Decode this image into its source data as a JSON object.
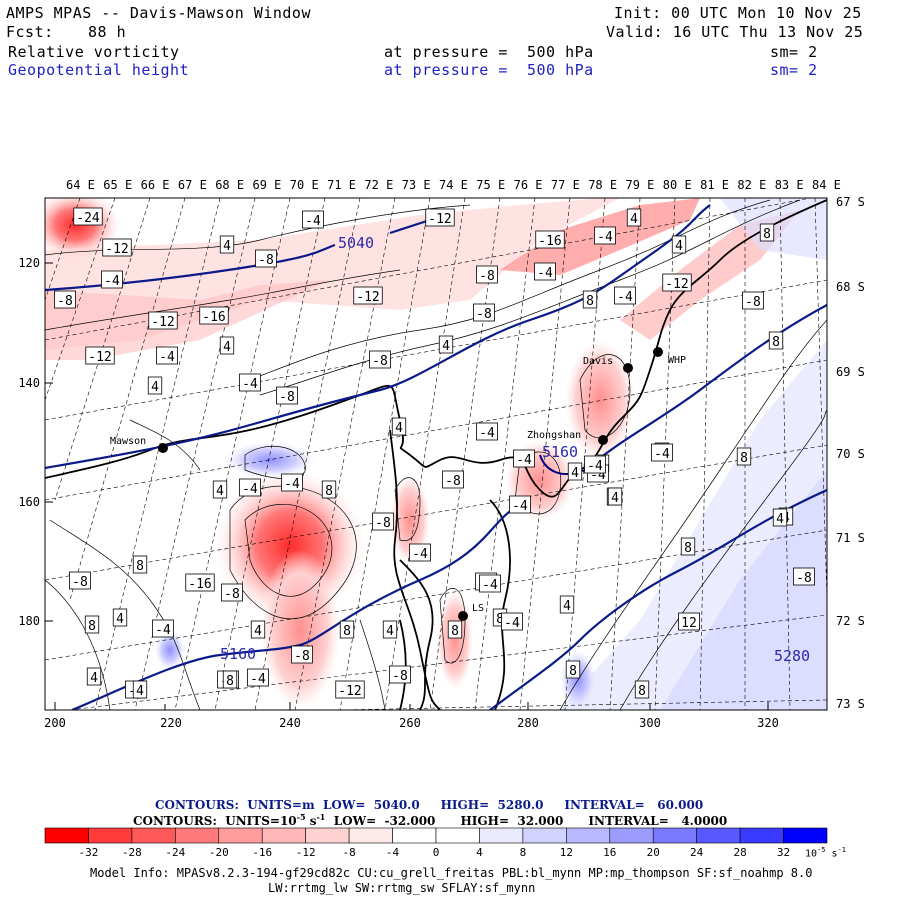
{
  "header": {
    "title": "AMPS MPAS -- Davis-Mawson Window",
    "init": "Init: 00 UTC Mon 10 Nov 25",
    "fcst_label": "Fcst:",
    "fcst_value": "88 h",
    "valid": "Valid: 16 UTC Thu 13 Nov 25",
    "field1": "Relative vorticity",
    "field1_level": "at pressure =  500 hPa",
    "field1_sm": "sm= 2",
    "field2": "Geopotential height",
    "field2_level": "at pressure =  500 hPa",
    "field2_sm": "sm= 2"
  },
  "map": {
    "top_lon_labels": [
      "64 E",
      "65 E",
      "66 E",
      "67 E",
      "68 E",
      "69 E",
      "70 E",
      "71 E",
      "72 E",
      "73 E",
      "74 E",
      "75 E",
      "76 E",
      "77 E",
      "78 E",
      "79 E",
      "80 E",
      "81 E",
      "82 E",
      "83 E",
      "84 E"
    ],
    "right_lat_labels": [
      "67 S",
      "68 S",
      "69 S",
      "70 S",
      "71 S",
      "72 S",
      "73 S"
    ],
    "left_y_labels": [
      "120",
      "140",
      "160",
      "180"
    ],
    "bottom_x_labels": [
      "200",
      "220",
      "240",
      "260",
      "280",
      "300",
      "320"
    ],
    "stations": [
      {
        "name": "Mawson",
        "icon": "station-dot-icon"
      },
      {
        "name": "Davis",
        "icon": "station-dot-icon"
      },
      {
        "name": "WHP",
        "icon": "station-dot-icon"
      },
      {
        "name": "Zhongshan",
        "icon": "station-dot-icon"
      },
      {
        "name": "LS",
        "icon": "station-dot-icon"
      }
    ],
    "height_contours": [
      "5040",
      "5160",
      "5280"
    ],
    "vorticity_labels": [
      "-24",
      "-12",
      "-4",
      "4",
      "-8",
      "-12",
      "-16",
      "-12",
      "-4",
      "4",
      "-4",
      "-8",
      "4",
      "-4",
      "-8",
      "-12",
      "-8",
      "-8",
      "4",
      "-12",
      "-8",
      "-16",
      "-4",
      "4",
      "-4",
      "8",
      "-12",
      "4",
      "-4",
      "8",
      "-8",
      "8",
      "4",
      "-4",
      "-4",
      "-8",
      "-8",
      "8",
      "4",
      "4",
      "4",
      "-4",
      "-4",
      "8",
      "-4",
      "-4",
      "4",
      "-4",
      "8",
      "-8",
      "-16",
      "-8",
      "4",
      "8",
      "4",
      "8",
      "8",
      "-4",
      "8",
      "4",
      "-4",
      "-4",
      "-8",
      "-12",
      "-8",
      "-4",
      "4",
      "8",
      "8",
      "4",
      "-8",
      "12",
      "8",
      "4",
      "-4",
      "-4",
      "-4",
      "-4",
      "-4",
      "4",
      "8",
      "4",
      "8",
      "4",
      "12",
      "-4",
      "-8",
      "8",
      "8",
      "8",
      "8",
      "-4",
      "4",
      "-4",
      "-12",
      "-4",
      "-4",
      "-8",
      "4",
      "4",
      "8"
    ]
  },
  "contours_info": {
    "line1": "CONTOURS:  UNITS=m  LOW=  5040.0     HIGH=  5280.0     INTERVAL=   60.000",
    "line2": "CONTOURS:  UNITS=10",
    "line2_exp": "-5",
    "line2_rest": " s",
    "line2_exp2": "-1",
    "line2_tail": "  LOW=  -32.000      HIGH=  32.000      INTERVAL=   4.0000"
  },
  "colorbar": {
    "labels": [
      "-32",
      "-28",
      "-24",
      "-20",
      "-16",
      "-12",
      "-8",
      "-4",
      "0",
      "4",
      "8",
      "12",
      "16",
      "20",
      "24",
      "28",
      "32"
    ],
    "units": "10",
    "units_exp": "-5",
    "units_s": " s",
    "units_exp2": "-1",
    "colors": [
      "#ff0000",
      "#ff3a3a",
      "#ff5858",
      "#ff7a7a",
      "#ff9c9c",
      "#ffb8b8",
      "#ffd2d2",
      "#ffeaea",
      "#ffffff",
      "#ffffff",
      "#eaeaff",
      "#d2d2ff",
      "#b8b8ff",
      "#9c9cff",
      "#7a7aff",
      "#5858ff",
      "#3a3aff",
      "#0000ff"
    ]
  },
  "footer": {
    "line1": "Model Info: MPASv8.2.3-194-gf29cd82c CU:cu_grell_freitas PBL:bl_mynn MP:mp_thompson SF:sf_noahmp 8.0",
    "line2": "LW:rrtmg_lw SW:rrtmg_sw SFLAY:sf_mynn"
  }
}
